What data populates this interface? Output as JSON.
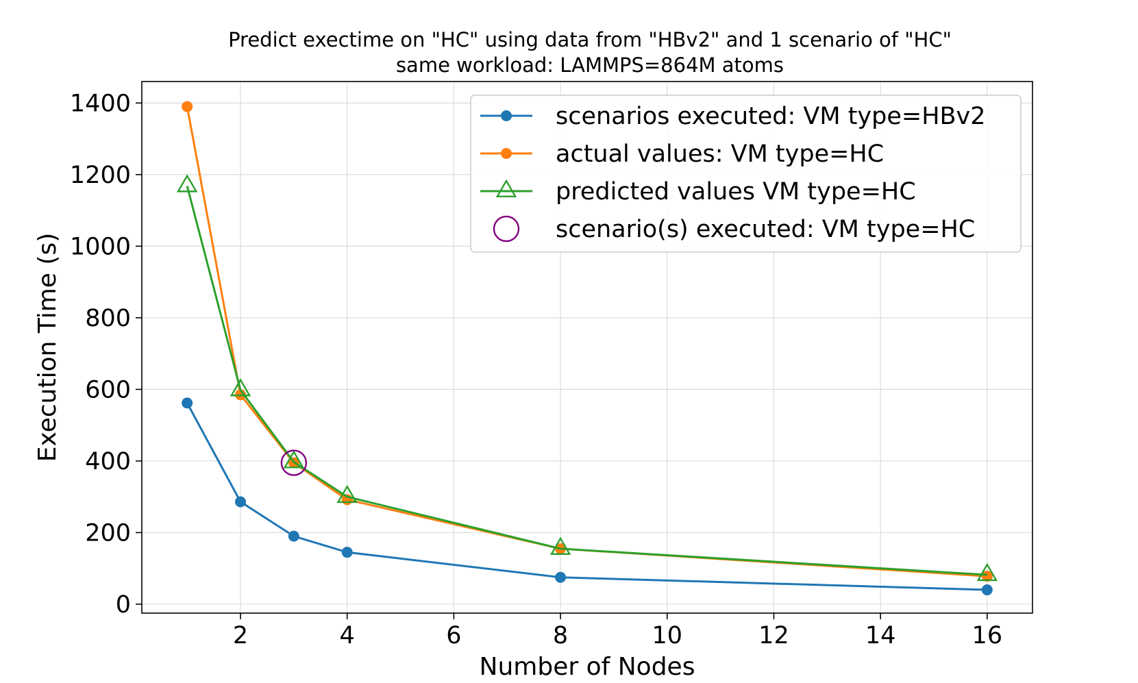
{
  "chart_data": {
    "type": "line",
    "title": "Predict exectime on \"HC\" using data from \"HBv2\" and 1 scenario of \"HC\"",
    "subtitle": "same workload: LAMMPS=864M atoms",
    "xlabel": "Number of Nodes",
    "ylabel": "Execution Time (s)",
    "xlim": [
      0.15,
      16.85
    ],
    "ylim": [
      -25,
      1460
    ],
    "xticks": [
      2,
      4,
      6,
      8,
      10,
      12,
      14,
      16
    ],
    "yticks": [
      0,
      200,
      400,
      600,
      800,
      1000,
      1200,
      1400
    ],
    "grid": true,
    "legend_position": "top-right",
    "series": [
      {
        "name": "scenarios executed: VM type=HBv2",
        "color": "#1f77b4",
        "marker": "circle",
        "x": [
          1,
          2,
          3,
          4,
          8,
          16
        ],
        "values": [
          562,
          286,
          190,
          145,
          75,
          40
        ]
      },
      {
        "name": "actual values: VM type=HC",
        "color": "#ff7f0e",
        "marker": "circle",
        "x": [
          1,
          2,
          3,
          4,
          8,
          16
        ],
        "values": [
          1390,
          585,
          395,
          292,
          155,
          78
        ]
      },
      {
        "name": "predicted values VM type=HC",
        "color": "#2ca02c",
        "marker": "triangle-open",
        "x": [
          1,
          2,
          3,
          4,
          8,
          16
        ],
        "values": [
          1168,
          598,
          397,
          300,
          155,
          82
        ]
      }
    ],
    "highlight": {
      "name": "scenario(s) executed: VM type=HC",
      "color": "#800080",
      "marker": "circle-open",
      "x": [
        3
      ],
      "values": [
        395
      ]
    }
  }
}
